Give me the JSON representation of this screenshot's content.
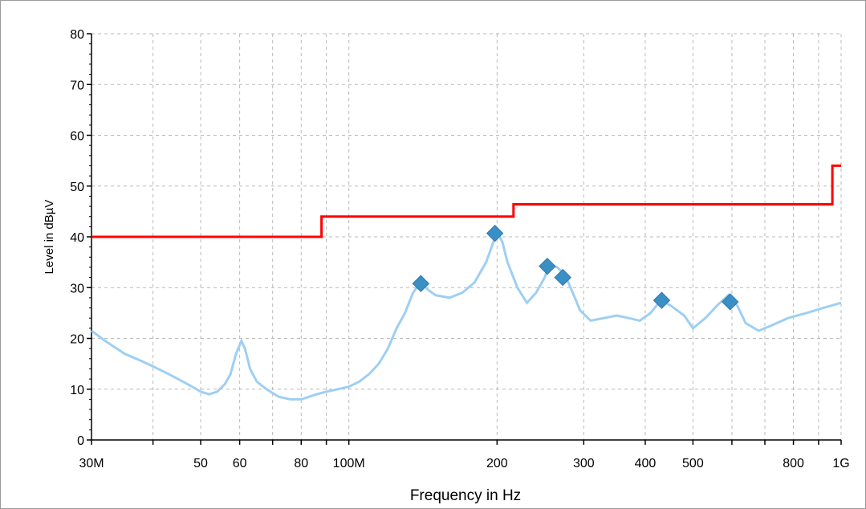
{
  "chart_data": {
    "type": "line",
    "title": "",
    "xlabel": "Frequency in Hz",
    "ylabel": "Level in dBµV",
    "x_scale": "log",
    "xlim": [
      30000000,
      1000000000
    ],
    "ylim": [
      0,
      80
    ],
    "grid": true,
    "y_ticks": [
      0,
      10,
      20,
      30,
      40,
      50,
      60,
      70,
      80
    ],
    "x_tick_labels": [
      {
        "value": 30000000,
        "label": "30M"
      },
      {
        "value": 50000000,
        "label": "50"
      },
      {
        "value": 60000000,
        "label": "60"
      },
      {
        "value": 80000000,
        "label": "80"
      },
      {
        "value": 100000000,
        "label": "100M"
      },
      {
        "value": 200000000,
        "label": "200"
      },
      {
        "value": 300000000,
        "label": "300"
      },
      {
        "value": 400000000,
        "label": "400"
      },
      {
        "value": 500000000,
        "label": "500"
      },
      {
        "value": 800000000,
        "label": "800"
      },
      {
        "value": 1000000000,
        "label": "1G"
      }
    ],
    "x_minor_ticks": [
      40000000,
      70000000,
      90000000,
      600000000,
      700000000,
      900000000
    ],
    "series": [
      {
        "color": "#99ccf2",
        "values": [
          [
            30000000,
            21.5
          ],
          [
            32000000,
            19.5
          ],
          [
            35000000,
            17
          ],
          [
            38000000,
            15.5
          ],
          [
            40000000,
            14.5
          ],
          [
            43000000,
            13
          ],
          [
            46000000,
            11.5
          ],
          [
            48000000,
            10.5
          ],
          [
            50000000,
            9.5
          ],
          [
            52000000,
            9
          ],
          [
            54000000,
            9.5
          ],
          [
            56000000,
            11
          ],
          [
            57500000,
            13
          ],
          [
            59000000,
            17
          ],
          [
            60500000,
            19.5
          ],
          [
            61500000,
            18
          ],
          [
            63000000,
            14
          ],
          [
            65000000,
            11.5
          ],
          [
            68000000,
            10
          ],
          [
            72000000,
            8.5
          ],
          [
            76000000,
            8
          ],
          [
            80000000,
            8
          ],
          [
            83000000,
            8.5
          ],
          [
            86000000,
            9
          ],
          [
            90000000,
            9.5
          ],
          [
            95000000,
            10
          ],
          [
            100000000,
            10.5
          ],
          [
            105000000,
            11.5
          ],
          [
            110000000,
            13
          ],
          [
            115000000,
            15
          ],
          [
            120000000,
            18
          ],
          [
            125000000,
            22
          ],
          [
            130000000,
            25
          ],
          [
            135000000,
            29
          ],
          [
            140000000,
            31
          ],
          [
            145000000,
            29.5
          ],
          [
            150000000,
            28.5
          ],
          [
            160000000,
            28
          ],
          [
            170000000,
            29
          ],
          [
            180000000,
            31
          ],
          [
            190000000,
            35
          ],
          [
            200000000,
            41
          ],
          [
            205000000,
            39
          ],
          [
            210000000,
            35
          ],
          [
            220000000,
            30
          ],
          [
            230000000,
            27
          ],
          [
            240000000,
            29
          ],
          [
            250000000,
            32
          ],
          [
            255000000,
            34.5
          ],
          [
            265000000,
            34
          ],
          [
            275000000,
            32.5
          ],
          [
            285000000,
            29
          ],
          [
            295000000,
            25.5
          ],
          [
            310000000,
            23.5
          ],
          [
            330000000,
            24
          ],
          [
            350000000,
            24.5
          ],
          [
            370000000,
            24
          ],
          [
            390000000,
            23.5
          ],
          [
            410000000,
            25
          ],
          [
            430000000,
            27.5
          ],
          [
            450000000,
            26.5
          ],
          [
            480000000,
            24.5
          ],
          [
            500000000,
            22
          ],
          [
            530000000,
            24
          ],
          [
            560000000,
            26.5
          ],
          [
            590000000,
            28.5
          ],
          [
            615000000,
            26.5
          ],
          [
            640000000,
            23
          ],
          [
            680000000,
            21.5
          ],
          [
            720000000,
            22.5
          ],
          [
            780000000,
            24
          ],
          [
            850000000,
            25
          ],
          [
            920000000,
            26
          ],
          [
            1000000000,
            27
          ]
        ]
      },
      {
        "color": "#ff0000",
        "values": [
          [
            30000000,
            40
          ],
          [
            88000000,
            40
          ],
          [
            88000000,
            44
          ],
          [
            216000000,
            44
          ],
          [
            216000000,
            46.4
          ],
          [
            960000000,
            46.4
          ],
          [
            960000000,
            54
          ],
          [
            1000000000,
            54
          ]
        ]
      }
    ],
    "markers": {
      "color": "#3a8fc4",
      "points": [
        [
          140000000,
          30.8
        ],
        [
          198000000,
          40.7
        ],
        [
          253000000,
          34.2
        ],
        [
          272000000,
          32
        ],
        [
          432000000,
          27.5
        ],
        [
          595000000,
          27.2
        ]
      ]
    }
  }
}
